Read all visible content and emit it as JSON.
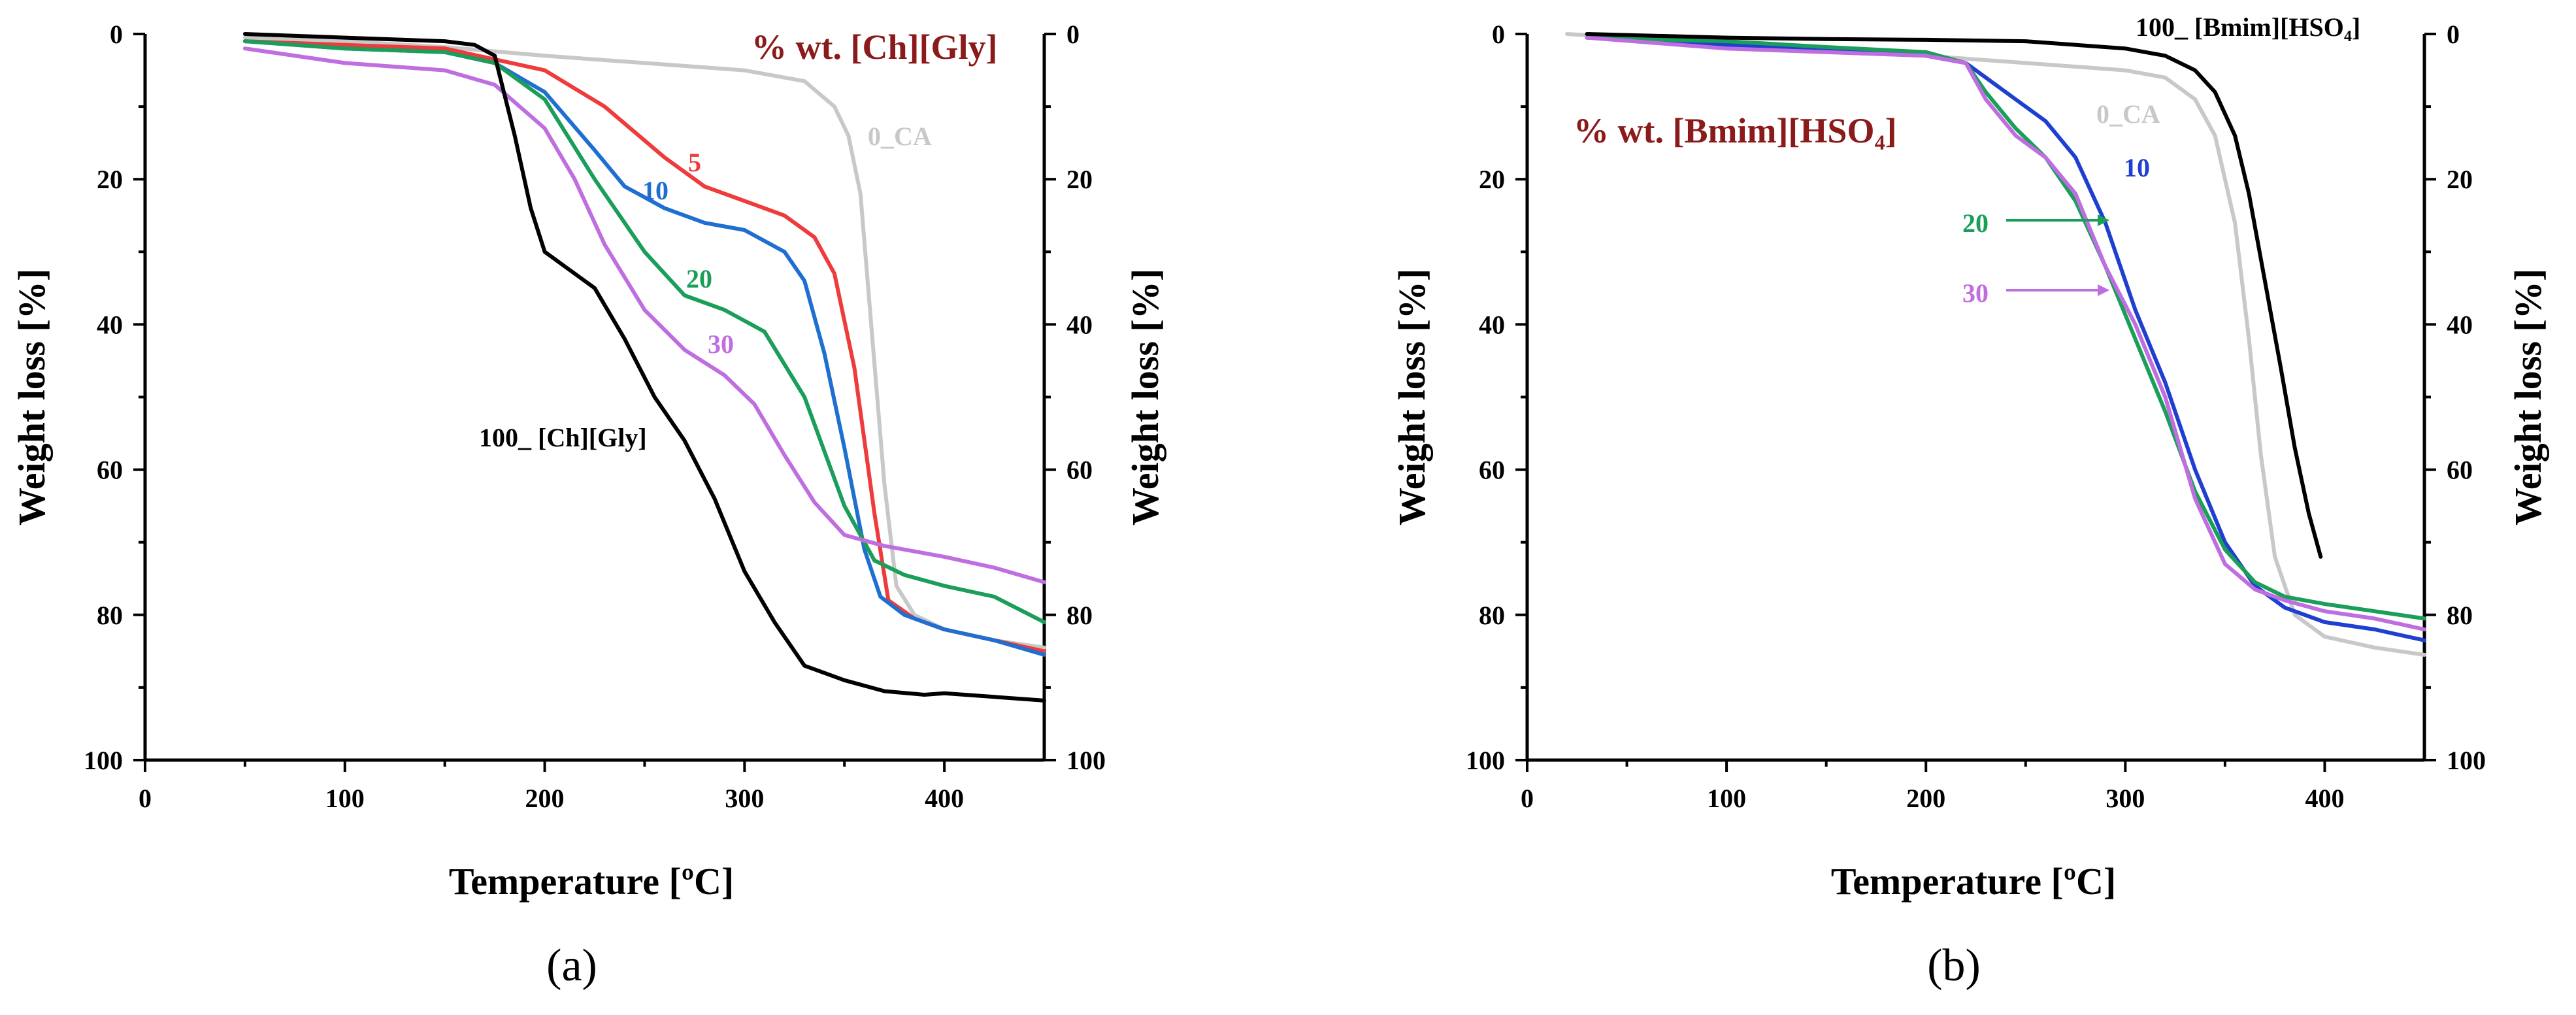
{
  "chart_data": [
    {
      "type": "line",
      "panel_label": "(a)",
      "title_annotation": "% wt. [Ch][Gly]",
      "title_color": "#8b1a1a",
      "xlabel": "Temperature [ºC]",
      "ylabel_left": "Weight loss [%]",
      "ylabel_right": "Weight loss [%]",
      "xlim": [
        0,
        450
      ],
      "ylim": [
        0,
        100
      ],
      "y_inverted": true,
      "xticks": [
        "0",
        "100",
        "200",
        "300",
        "400"
      ],
      "yticks": [
        "0",
        "20",
        "40",
        "60",
        "80",
        "100"
      ],
      "series": [
        {
          "name": "0_CA",
          "label": "0_CA",
          "color": "#c8c8c8",
          "x": [
            50,
            100,
            150,
            200,
            250,
            300,
            330,
            345,
            352,
            358,
            364,
            370,
            376,
            385,
            400,
            425,
            450
          ],
          "y": [
            0.5,
            1,
            1.8,
            3,
            4,
            5,
            6.5,
            10,
            14,
            22,
            42,
            62,
            76,
            80,
            82,
            83.5,
            84.5
          ]
        },
        {
          "name": "5",
          "label": "5",
          "color": "#ee3b3b",
          "x": [
            50,
            100,
            150,
            175,
            200,
            230,
            260,
            280,
            300,
            320,
            335,
            345,
            355,
            365,
            372,
            385,
            400,
            425,
            450
          ],
          "y": [
            1,
            1.5,
            2,
            3.5,
            5,
            10,
            17,
            21,
            23,
            25,
            28,
            33,
            46,
            66,
            78,
            80.5,
            82,
            83.5,
            85
          ]
        },
        {
          "name": "10",
          "label": "10",
          "color": "#1f6fd1",
          "x": [
            50,
            100,
            150,
            175,
            200,
            225,
            240,
            260,
            280,
            300,
            320,
            330,
            340,
            350,
            360,
            368,
            380,
            400,
            425,
            450
          ],
          "y": [
            1,
            2,
            2.5,
            4,
            8,
            16,
            21,
            24,
            26,
            27,
            30,
            34,
            44,
            57,
            71,
            77.5,
            80,
            82,
            83.5,
            85.5
          ]
        },
        {
          "name": "20",
          "label": "20",
          "color": "#1a9e5a",
          "x": [
            50,
            100,
            150,
            175,
            200,
            225,
            250,
            270,
            290,
            310,
            330,
            350,
            365,
            380,
            400,
            425,
            450
          ],
          "y": [
            1,
            2,
            2.5,
            4,
            9,
            20,
            30,
            36,
            38,
            41,
            50,
            65,
            72.5,
            74.5,
            76,
            77.5,
            81
          ]
        },
        {
          "name": "30",
          "label": "30",
          "color": "#bf6ee0",
          "x": [
            50,
            100,
            150,
            175,
            200,
            215,
            230,
            250,
            270,
            290,
            305,
            320,
            335,
            350,
            370,
            400,
            425,
            450
          ],
          "y": [
            2,
            4,
            5,
            7,
            13,
            20,
            29,
            38,
            43.5,
            47,
            51,
            58,
            64.5,
            69,
            70.5,
            72,
            73.5,
            75.5
          ]
        },
        {
          "name": "100_ [Ch][Gly]",
          "label": "100_ [Ch][Gly]",
          "color": "#000000",
          "x": [
            50,
            100,
            150,
            165,
            175,
            185,
            193,
            200,
            210,
            225,
            240,
            255,
            270,
            285,
            300,
            315,
            330,
            350,
            370,
            390,
            400,
            425,
            450
          ],
          "y": [
            0,
            0.5,
            1,
            1.5,
            3,
            14,
            24,
            30,
            32,
            35,
            42,
            50,
            56,
            64,
            74,
            81,
            87,
            89,
            90.5,
            91,
            90.8,
            91.3,
            91.8
          ]
        }
      ],
      "annotations": [
        "0_CA",
        "5",
        "10",
        "20",
        "30",
        "100_ [Ch][Gly]"
      ]
    },
    {
      "type": "line",
      "panel_label": "(b)",
      "title_annotation": "% wt. [Bmim][HSO₄]",
      "title_color": "#8b1a1a",
      "xlabel": "Temperature [ºC]",
      "ylabel_left": "Weight loss [%]",
      "ylabel_right": "Weight loss [%]",
      "xlim": [
        0,
        450
      ],
      "ylim": [
        0,
        100
      ],
      "y_inverted": true,
      "xticks": [
        "0",
        "100",
        "200",
        "300",
        "400"
      ],
      "yticks": [
        "0",
        "20",
        "40",
        "60",
        "80",
        "100"
      ],
      "series": [
        {
          "name": "0_CA",
          "label": "0_CA",
          "color": "#c8c8c8",
          "x": [
            20,
            50,
            100,
            150,
            200,
            250,
            300,
            320,
            335,
            345,
            355,
            362,
            368,
            375,
            385,
            400,
            425,
            450
          ],
          "y": [
            0,
            0.5,
            2,
            2.5,
            3,
            4,
            5,
            6,
            9,
            14,
            26,
            42,
            58,
            72,
            80,
            83,
            84.5,
            85.5
          ]
        },
        {
          "name": "10",
          "label": "10",
          "color": "#1f3fd1",
          "x": [
            30,
            100,
            150,
            200,
            220,
            230,
            245,
            260,
            275,
            290,
            305,
            320,
            335,
            350,
            365,
            380,
            400,
            425,
            450
          ],
          "y": [
            0.5,
            1.5,
            2,
            3,
            4,
            6,
            9,
            12,
            17,
            26,
            38,
            48,
            60,
            70,
            76,
            79,
            81,
            82,
            83.5
          ]
        },
        {
          "name": "20",
          "label": "20",
          "color": "#1a9e5a",
          "x": [
            30,
            100,
            150,
            200,
            220,
            230,
            245,
            260,
            275,
            290,
            305,
            320,
            335,
            350,
            365,
            380,
            400,
            425,
            450
          ],
          "y": [
            0.5,
            1,
            1.8,
            2.5,
            4,
            8,
            13,
            17,
            23,
            32,
            42,
            52,
            63,
            71,
            75.5,
            77.5,
            78.5,
            79.5,
            80.5
          ]
        },
        {
          "name": "30",
          "label": "30",
          "color": "#bf6ee0",
          "x": [
            30,
            100,
            150,
            200,
            220,
            230,
            245,
            260,
            275,
            290,
            305,
            320,
            335,
            350,
            365,
            380,
            400,
            425,
            450
          ],
          "y": [
            0.5,
            2,
            2.5,
            3,
            4,
            9,
            14,
            17,
            22,
            32,
            40,
            50,
            64,
            73,
            76.5,
            78,
            79.5,
            80.5,
            82
          ]
        },
        {
          "name": "100_ [Bmim][HSO₄]",
          "label": "100_ [Bmim][HSO₄]",
          "color": "#000000",
          "x": [
            30,
            100,
            150,
            200,
            250,
            300,
            320,
            335,
            345,
            355,
            362,
            370,
            378,
            385,
            392,
            398
          ],
          "y": [
            0,
            0.5,
            0.7,
            0.8,
            1,
            2,
            3,
            5,
            8,
            14,
            22,
            34,
            46,
            57,
            66,
            72
          ]
        }
      ],
      "annotations": [
        "0_CA",
        "10",
        "20",
        "30",
        "100_ [Bmim][HSO₄]"
      ]
    }
  ]
}
